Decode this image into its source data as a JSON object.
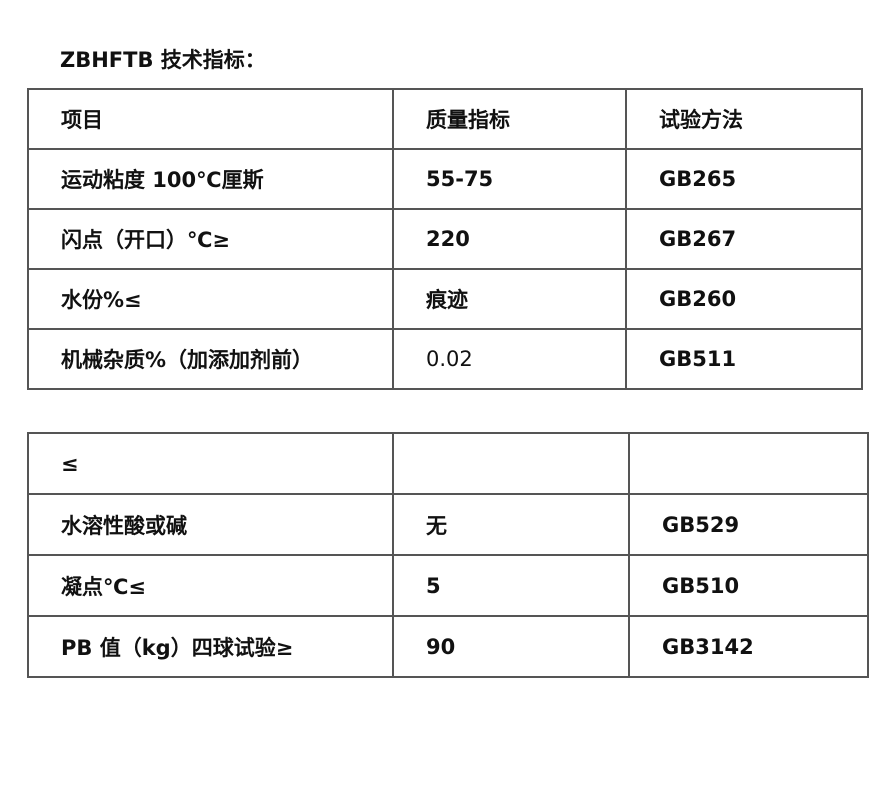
{
  "title": "ZBHFTB 技术指标：",
  "table1": {
    "header": [
      "项目",
      "质量指标",
      "试验方法"
    ],
    "rows": [
      [
        "运动粘度 100℃厘斯",
        "55-75",
        "GB265"
      ],
      [
        "闪点（开口）℃≥",
        "220",
        "GB267"
      ],
      [
        "水份%≤",
        "痕迹",
        "GB260"
      ],
      [
        "机械杂质%（加添加剂前）",
        "0.02",
        "GB511"
      ]
    ]
  },
  "table2": {
    "rows": [
      [
        "≤",
        "",
        ""
      ],
      [
        "水溶性酸或碱",
        "无",
        "GB529"
      ],
      [
        "凝点℃≤",
        "5",
        "GB510"
      ],
      [
        "PB 值（kg）四球试验≥",
        "90",
        "GB3142"
      ]
    ]
  }
}
